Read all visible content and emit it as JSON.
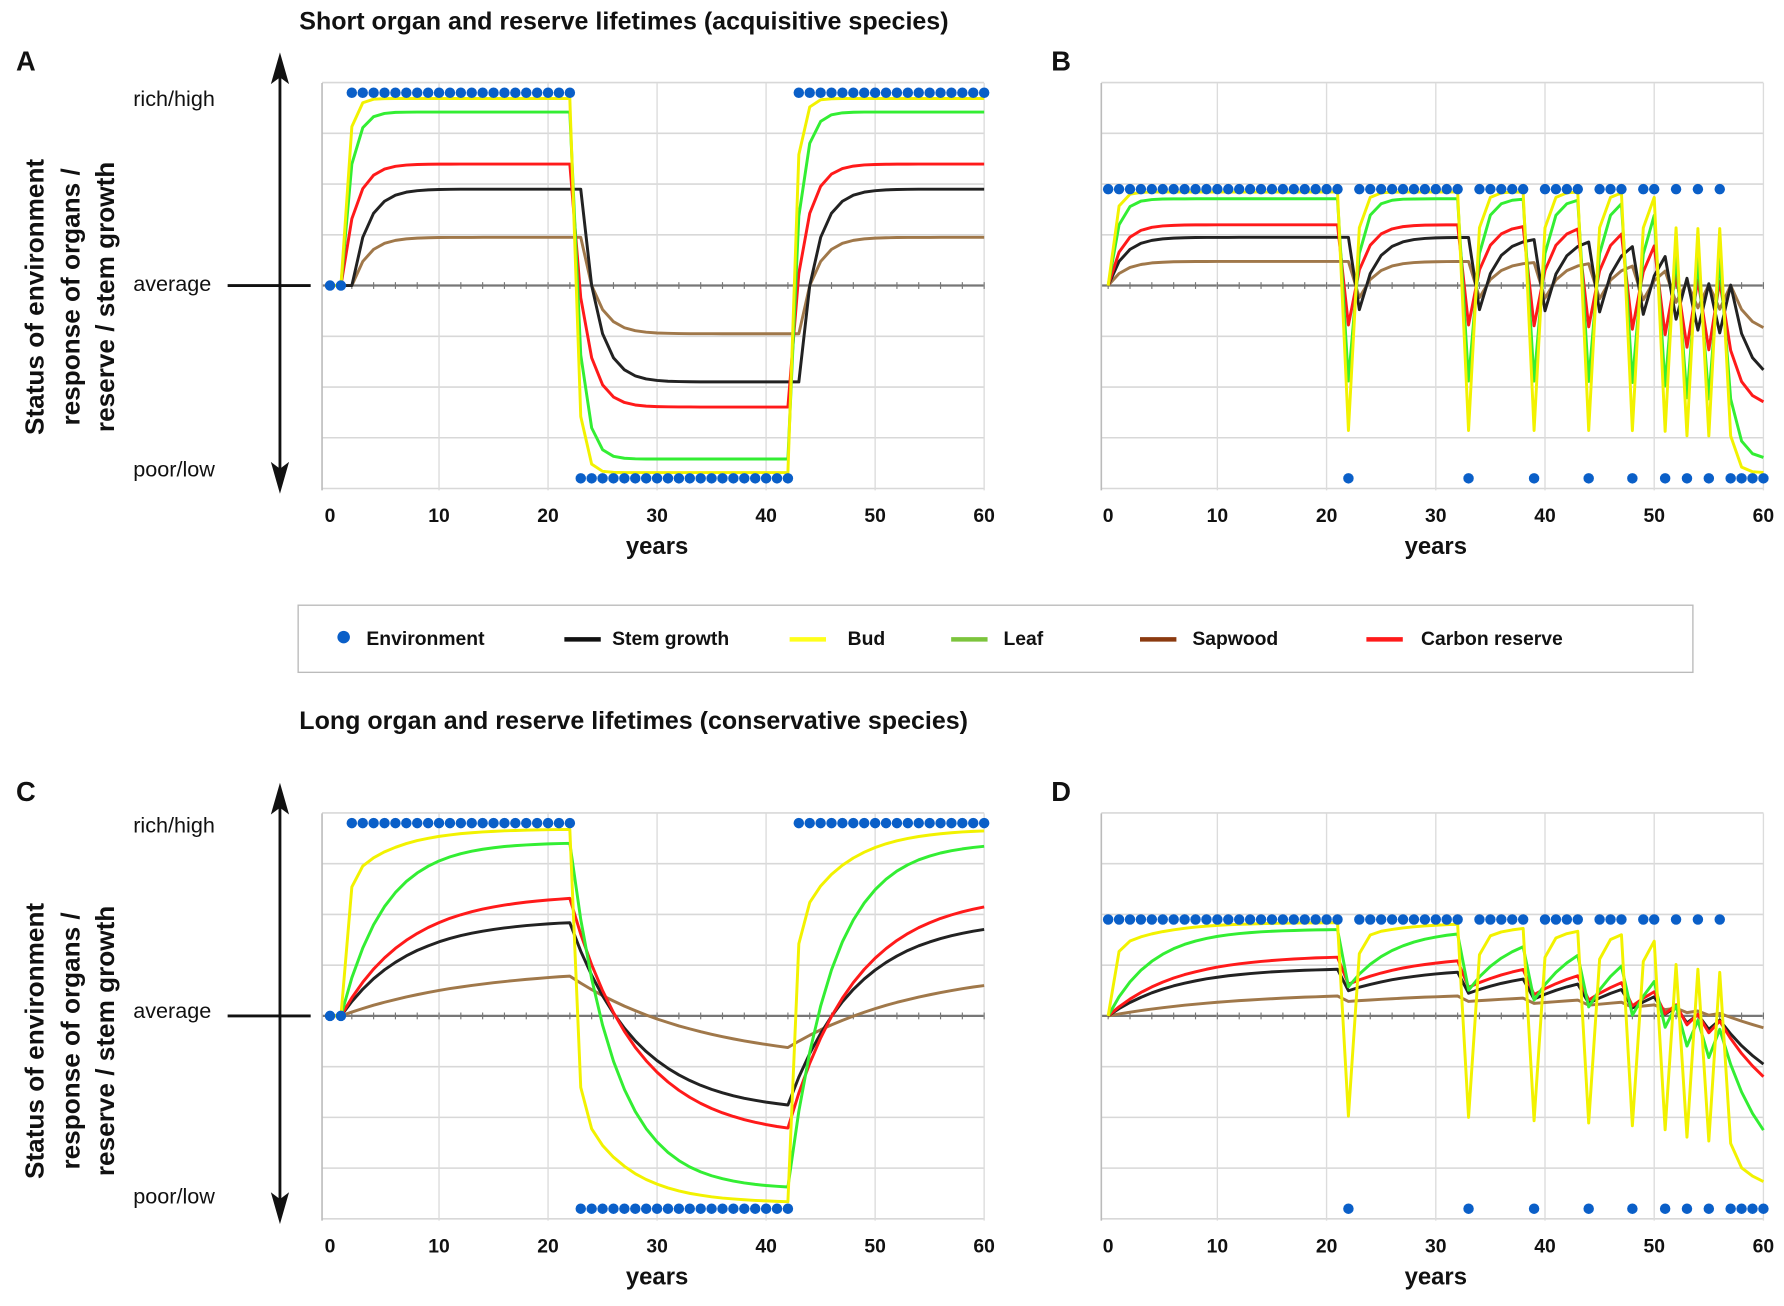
{
  "titles": {
    "top": "Short organ and reserve lifetimes (acquisitive species)",
    "bottom": "Long organ and reserve lifetimes (conservative species)"
  },
  "y_axis_label": [
    "Status of environment",
    "response of organs /",
    "reserve / stem growth"
  ],
  "y_categories": {
    "high": "rich/high",
    "mid": "average",
    "low": "poor/low"
  },
  "legend": [
    {
      "label": "Environment",
      "color": "#0a5fc8",
      "type": "dot"
    },
    {
      "label": "Stem growth",
      "color": "#111111",
      "type": "line"
    },
    {
      "label": "Bud",
      "color": "#ffff1a",
      "type": "line"
    },
    {
      "label": "Leaf",
      "color": "#7cc43c",
      "type": "line"
    },
    {
      "label": "Sapwood",
      "color": "#8b3a0f",
      "type": "line"
    },
    {
      "label": "Carbon reserve",
      "color": "#ff1a1a",
      "type": "line"
    }
  ],
  "chart_data": {
    "type": "line",
    "xlabel": "years",
    "x_ticks": [
      "0",
      "10",
      "20",
      "30",
      "40",
      "50",
      "60"
    ],
    "xlim": [
      0,
      60
    ],
    "ylim": [
      -4,
      4
    ],
    "series_colors": {
      "env": "#0a5fc8",
      "stem": "#222222",
      "bud": "#f2f200",
      "leaf": "#33ee33",
      "sapwood": "#a0784a",
      "reserve": "#ff1a1a"
    },
    "panels": [
      {
        "letter": "A",
        "env_code": "00HHHHHHHHHHHHHHHHHHHHHLLLLLLLLLLLLLLLLLLLLHHHHHHHHHHHHHHHHHH",
        "env_high": 3.8,
        "env_low": -3.8,
        "series": {
          "bud": {
            "gain": 0.97,
            "k": 0.85,
            "fast": 0,
            "delay": 0
          },
          "leaf": {
            "gain": 0.9,
            "k": 0.7,
            "fast": 0,
            "delay": 0
          },
          "reserve": {
            "gain": 0.63,
            "k": 0.55,
            "fast": 0,
            "delay": 0
          },
          "stem": {
            "gain": 0.5,
            "k": 0.5,
            "fast": 0,
            "delay": 1
          },
          "sapwood": {
            "gain": 0.25,
            "k": 0.5,
            "fast": 0,
            "delay": 1
          }
        }
      },
      {
        "letter": "B",
        "env_code": "HHHHHHHHHHHHHHHHHHHHHHLHHHHHHHHHHLHHHHHLHHHHLHHHLHHLHLHLHLLLL",
        "env_high": 1.9,
        "env_low": -3.8,
        "series": {
          "bud": {
            "gain": 0.97,
            "k": 0.85,
            "fast": 0,
            "delay": 0
          },
          "leaf": {
            "gain": 0.9,
            "k": 0.7,
            "fast": 0,
            "delay": 0
          },
          "reserve": {
            "gain": 0.63,
            "k": 0.55,
            "fast": 0,
            "delay": 0
          },
          "stem": {
            "gain": 0.5,
            "k": 0.5,
            "fast": 0,
            "delay": 1
          },
          "sapwood": {
            "gain": 0.25,
            "k": 0.5,
            "fast": 0,
            "delay": 1
          }
        }
      },
      {
        "letter": "C",
        "env_code": "00HHHHHHHHHHHHHHHHHHHHHLLLLLLLLLLLLLLLLLLLLHHHHHHHHHHHHHHHHHH",
        "env_high": 3.8,
        "env_low": -3.8,
        "series": {
          "bud": {
            "gain": 0.97,
            "k": 0.2,
            "fast": 0.7,
            "delay": 0
          },
          "leaf": {
            "gain": 0.9,
            "k": 0.22,
            "fast": 0,
            "delay": 0
          },
          "reserve": {
            "gain": 0.63,
            "k": 0.15,
            "fast": 0,
            "delay": 0
          },
          "stem": {
            "gain": 0.5,
            "k": 0.15,
            "fast": 0,
            "delay": 0
          },
          "sapwood": {
            "gain": 0.25,
            "k": 0.08,
            "fast": 0,
            "delay": 0
          }
        }
      },
      {
        "letter": "D",
        "env_code": "HHHHHHHHHHHHHHHHHHHHHHLHHHHHHHHHHLHHHHHLHHHHLHHHLHHLHLHLHLLLL",
        "env_high": 1.9,
        "env_low": -3.8,
        "series": {
          "bud": {
            "gain": 0.97,
            "k": 0.2,
            "fast": 0.7,
            "delay": 0
          },
          "leaf": {
            "gain": 0.9,
            "k": 0.22,
            "fast": 0,
            "delay": 0
          },
          "reserve": {
            "gain": 0.63,
            "k": 0.15,
            "fast": 0,
            "delay": 0
          },
          "stem": {
            "gain": 0.5,
            "k": 0.15,
            "fast": 0,
            "delay": 0
          },
          "sapwood": {
            "gain": 0.25,
            "k": 0.08,
            "fast": 0,
            "delay": 0
          }
        }
      }
    ]
  }
}
